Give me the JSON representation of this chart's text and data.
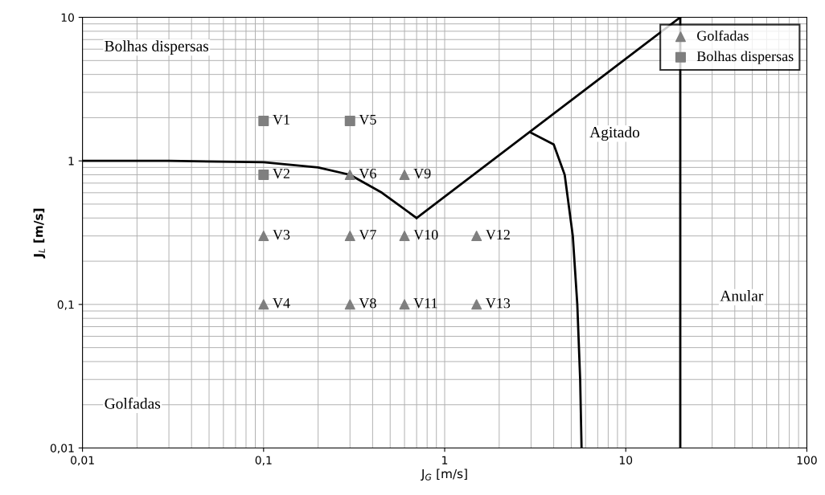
{
  "chart_data": {
    "type": "scatter",
    "xlabel": "J$_{G}$ [m/s]",
    "ylabel": "J$_{L}$ [m/s]",
    "log": "xy",
    "grid": true,
    "legend": "top right",
    "xlim": [
      0.01,
      100
    ],
    "ylim": [
      0.01,
      10
    ],
    "xticks": [
      {
        "value": 0.01,
        "label": "0,01"
      },
      {
        "value": 0.1,
        "label": "0,1"
      },
      1,
      10,
      100
    ],
    "yticks": [
      {
        "value": 0.01,
        "label": "0,01"
      },
      {
        "value": 0.1,
        "label": "0,1"
      },
      1,
      10
    ],
    "series": [
      {
        "name": "Golfadas",
        "marker": "triangle",
        "color": "#7f7f7f",
        "x": [
          0.3,
          0.6,
          0.1,
          0.3,
          0.6,
          1.5,
          0.1,
          0.3,
          0.6,
          1.5
        ],
        "values": [
          0.8,
          0.8,
          0.3,
          0.3,
          0.3,
          0.3,
          0.1,
          0.1,
          0.1,
          0.1
        ]
      },
      {
        "name": "Bolhas dispersas",
        "marker": "square",
        "color": "#7f7f7f",
        "x": [
          0.1,
          0.3,
          0.1
        ],
        "values": [
          1.9,
          1.9,
          0.8
        ]
      },
      {
        "type": "line",
        "color": "#000000",
        "marker": "none",
        "x": [
          0.01,
          0.03,
          0.1,
          0.2,
          0.3,
          0.45,
          0.7
        ],
        "values": [
          1.0,
          1.0,
          0.98,
          0.9,
          0.8,
          0.6,
          0.4
        ]
      },
      {
        "type": "line",
        "color": "#000000",
        "marker": "none",
        "x": [
          0.7,
          20
        ],
        "values": [
          0.4,
          10
        ]
      },
      {
        "type": "line",
        "color": "#000000",
        "marker": "none",
        "x": [
          3,
          4,
          4.6,
          5.1,
          5.4,
          5.6,
          5.7
        ],
        "values": [
          1.57,
          1.3,
          0.8,
          0.3,
          0.1,
          0.03,
          0.01
        ]
      },
      {
        "type": "line",
        "color": "#000000",
        "marker": "none",
        "x": [
          20,
          20
        ],
        "values": [
          0.01,
          10
        ]
      }
    ],
    "annotations": [
      "Bolhas dispersas",
      "Agitado",
      "Anular",
      "Golfadas",
      {
        "text": "V1",
        "x": 0.1,
        "y": 1.9
      },
      {
        "text": "V5",
        "x": 0.3,
        "y": 1.9
      },
      {
        "text": "V2",
        "x": 0.1,
        "y": 0.8
      },
      {
        "text": "V6",
        "x": 0.3,
        "y": 0.8
      },
      {
        "text": "V9",
        "x": 0.6,
        "y": 0.8
      },
      {
        "text": "V3",
        "x": 0.1,
        "y": 0.3
      },
      {
        "text": "V7",
        "x": 0.3,
        "y": 0.3
      },
      {
        "text": "V10",
        "x": 0.6,
        "y": 0.3
      },
      {
        "text": "V12",
        "x": 1.5,
        "y": 0.3
      },
      {
        "text": "V4",
        "x": 0.1,
        "y": 0.1
      },
      {
        "text": "V8",
        "x": 0.3,
        "y": 0.1
      },
      {
        "text": "V11",
        "x": 0.6,
        "y": 0.1
      },
      {
        "text": "V13",
        "x": 1.5,
        "y": 0.1
      }
    ]
  }
}
